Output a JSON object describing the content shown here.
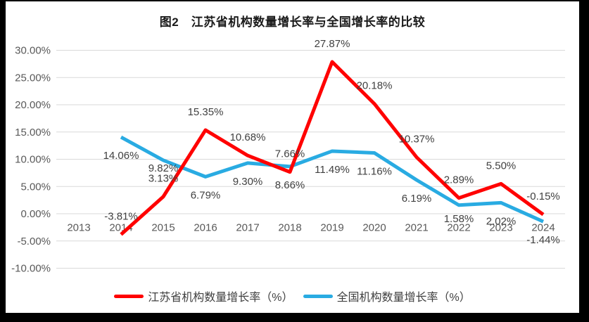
{
  "chart_data": {
    "type": "line",
    "title": "图2　江苏省机构数量增长率与全国增长率的比较",
    "categories": [
      "2013",
      "2014",
      "2015",
      "2016",
      "2017",
      "2018",
      "2019",
      "2020",
      "2021",
      "2022",
      "2023",
      "2024"
    ],
    "series": [
      {
        "name": "江苏省机构数量增长率（%）",
        "color": "#FF0000",
        "values": [
          null,
          -3.81,
          3.13,
          15.35,
          10.68,
          7.66,
          27.87,
          20.18,
          10.37,
          2.89,
          5.5,
          -0.15
        ],
        "labels": [
          "",
          "-3.81%",
          "3.13%",
          "15.35%",
          "10.68%",
          "7.66%",
          "27.87%",
          "20.18%",
          "10.37%",
          "2.89%",
          "5.50%",
          "-0.15%"
        ],
        "label_side": "above"
      },
      {
        "name": "全国机构数量增长率（%）",
        "color": "#29ABE2",
        "values": [
          null,
          14.06,
          9.82,
          6.79,
          9.3,
          8.66,
          11.49,
          11.16,
          6.19,
          1.58,
          2.02,
          -1.44
        ],
        "labels": [
          "",
          "14.06%",
          "9.82%",
          "6.79%",
          "9.30%",
          "8.66%",
          "11.49%",
          "11.16%",
          "6.19%",
          "1.58%",
          "2.02%",
          "-1.44%"
        ],
        "label_side": "below"
      }
    ],
    "y_axis": {
      "tick_labels": [
        "30.00%",
        "25.00%",
        "20.00%",
        "15.00%",
        "10.00%",
        "5.00%",
        "0.00%",
        "-5.00%",
        "-10.00%"
      ],
      "tick_values": [
        30,
        25,
        20,
        15,
        10,
        5,
        0,
        -5,
        -10
      ],
      "min": -10,
      "max": 30,
      "step": 5
    },
    "xlabel": "",
    "ylabel": "",
    "grid": true,
    "legend_position": "bottom"
  },
  "styles": {
    "grid_color": "#D9D9D9",
    "axis_text_color": "#595959",
    "data_label_color": "#404040",
    "background": "#ffffff",
    "frame_color": "#000000"
  }
}
